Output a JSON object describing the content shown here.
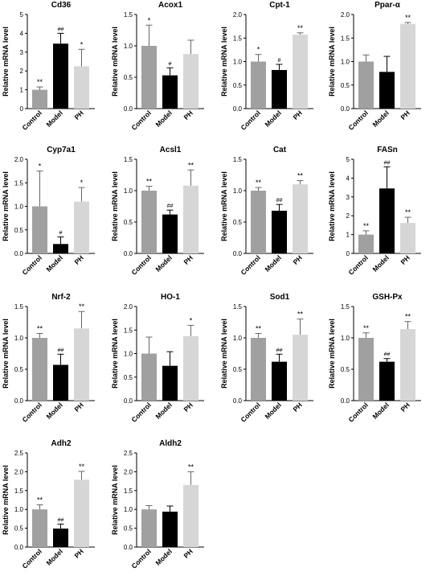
{
  "colors": {
    "control": "#a0a0a0",
    "model": "#000000",
    "ph": "#d6d6d6",
    "axis": "#000000"
  },
  "chart_data": [
    {
      "type": "bar",
      "title": "Cd36",
      "ylabel": "Relative mRNA level",
      "categories": [
        "Control",
        "Model",
        "PH"
      ],
      "ylim": [
        0,
        5
      ],
      "ticks": [
        "0",
        "1",
        "2",
        "3",
        "4",
        "5"
      ],
      "values": [
        1.0,
        3.45,
        2.25
      ],
      "errors": [
        0.15,
        0.55,
        0.9
      ],
      "labels": [
        "**",
        "##",
        "*"
      ]
    },
    {
      "type": "bar",
      "title": "Acox1",
      "ylabel": "Relative mRNA level",
      "categories": [
        "Control",
        "Model",
        "PH"
      ],
      "ylim": [
        0,
        1.5
      ],
      "ticks": [
        "0.0",
        "0.5",
        "1.0",
        "1.5"
      ],
      "values": [
        1.0,
        0.53,
        0.87
      ],
      "errors": [
        0.33,
        0.12,
        0.22
      ],
      "labels": [
        "*",
        "#",
        ""
      ]
    },
    {
      "type": "bar",
      "title": "Cpt-1",
      "ylabel": "Relative mRNA level",
      "categories": [
        "Control",
        "Model",
        "PH"
      ],
      "ylim": [
        0,
        2.0
      ],
      "ticks": [
        "0.0",
        "0.5",
        "1.0",
        "1.5",
        "2.0"
      ],
      "values": [
        1.0,
        0.82,
        1.57
      ],
      "errors": [
        0.15,
        0.12,
        0.04
      ],
      "labels": [
        "*",
        "#",
        "**"
      ]
    },
    {
      "type": "bar",
      "title": "Ppar-α",
      "ylabel": "Relative mRNA level",
      "categories": [
        "Control",
        "Model",
        "PH"
      ],
      "ylim": [
        0,
        2.0
      ],
      "ticks": [
        "0.0",
        "0.5",
        "1.0",
        "1.5",
        "2.0"
      ],
      "values": [
        1.0,
        0.78,
        1.8
      ],
      "errors": [
        0.14,
        0.33,
        0.03
      ],
      "labels": [
        "",
        "",
        "**"
      ]
    },
    {
      "type": "bar",
      "title": "Cyp7a1",
      "ylabel": "Relative mRNA level",
      "categories": [
        "Control",
        "Model",
        "PH"
      ],
      "ylim": [
        0,
        2.0
      ],
      "ticks": [
        "0.0",
        "0.5",
        "1.0",
        "1.5",
        "2.0"
      ],
      "values": [
        1.0,
        0.2,
        1.1
      ],
      "errors": [
        0.75,
        0.15,
        0.3
      ],
      "labels": [
        "*",
        "#",
        "*"
      ]
    },
    {
      "type": "bar",
      "title": "Acsl1",
      "ylabel": "Relative mRNA level",
      "categories": [
        "Control",
        "Model",
        "PH"
      ],
      "ylim": [
        0,
        1.5
      ],
      "ticks": [
        "0.0",
        "0.5",
        "1.0",
        "1.5"
      ],
      "values": [
        1.0,
        0.62,
        1.08
      ],
      "errors": [
        0.07,
        0.07,
        0.25
      ],
      "labels": [
        "**",
        "##",
        "**"
      ]
    },
    {
      "type": "bar",
      "title": "Cat",
      "ylabel": "Relative mRNA level",
      "categories": [
        "Control",
        "Model",
        "PH"
      ],
      "ylim": [
        0,
        1.5
      ],
      "ticks": [
        "0.0",
        "0.5",
        "1.0",
        "1.5"
      ],
      "values": [
        1.0,
        0.68,
        1.1
      ],
      "errors": [
        0.05,
        0.1,
        0.06
      ],
      "labels": [
        "**",
        "##",
        "**"
      ]
    },
    {
      "type": "bar",
      "title": "FASn",
      "ylabel": "Relative mRNA level",
      "categories": [
        "Control",
        "Model",
        "PH"
      ],
      "ylim": [
        0,
        5
      ],
      "ticks": [
        "0",
        "1",
        "2",
        "3",
        "4",
        "5"
      ],
      "values": [
        1.0,
        3.45,
        1.62
      ],
      "errors": [
        0.2,
        1.15,
        0.3
      ],
      "labels": [
        "**",
        "##",
        "**"
      ]
    },
    {
      "type": "bar",
      "title": "Nrf-2",
      "ylabel": "Relative mRNA level",
      "categories": [
        "Control",
        "Model",
        "PH"
      ],
      "ylim": [
        0,
        1.5
      ],
      "ticks": [
        "0.0",
        "0.5",
        "1.0",
        "1.5"
      ],
      "values": [
        1.0,
        0.57,
        1.15
      ],
      "errors": [
        0.07,
        0.17,
        0.27
      ],
      "labels": [
        "**",
        "##",
        "**"
      ]
    },
    {
      "type": "bar",
      "title": "HO-1",
      "ylabel": "Relative mRNA level",
      "categories": [
        "Control",
        "Model",
        "PH"
      ],
      "ylim": [
        0,
        2.0
      ],
      "ticks": [
        "0.0",
        "0.5",
        "1.0",
        "1.5",
        "2.0"
      ],
      "values": [
        1.0,
        0.74,
        1.37
      ],
      "errors": [
        0.35,
        0.3,
        0.23
      ],
      "labels": [
        "",
        "",
        "*"
      ]
    },
    {
      "type": "bar",
      "title": "Sod1",
      "ylabel": "Relative mRNA level",
      "categories": [
        "Control",
        "Model",
        "PH"
      ],
      "ylim": [
        0,
        1.5
      ],
      "ticks": [
        "0.0",
        "0.5",
        "1.0",
        "1.5"
      ],
      "values": [
        1.0,
        0.62,
        1.05
      ],
      "errors": [
        0.07,
        0.12,
        0.25
      ],
      "labels": [
        "**",
        "##",
        "**"
      ]
    },
    {
      "type": "bar",
      "title": "GSH-Px",
      "ylabel": "Relative mRNA level",
      "categories": [
        "Control",
        "Model",
        "PH"
      ],
      "ylim": [
        0,
        1.5
      ],
      "ticks": [
        "0.0",
        "0.5",
        "1.0",
        "1.5"
      ],
      "values": [
        1.0,
        0.62,
        1.14
      ],
      "errors": [
        0.08,
        0.05,
        0.12
      ],
      "labels": [
        "**",
        "##",
        "**"
      ]
    },
    {
      "type": "bar",
      "title": "Adh2",
      "ylabel": "Relative mRNA level",
      "categories": [
        "Control",
        "Model",
        "PH"
      ],
      "ylim": [
        0,
        2.5
      ],
      "ticks": [
        "0.0",
        "0.5",
        "1.0",
        "1.5",
        "2.0",
        "2.5"
      ],
      "values": [
        1.0,
        0.49,
        1.79
      ],
      "errors": [
        0.12,
        0.12,
        0.22
      ],
      "labels": [
        "**",
        "##",
        "**"
      ]
    },
    {
      "type": "bar",
      "title": "Aldh2",
      "ylabel": "Relative mRNA level",
      "categories": [
        "Control",
        "Model",
        "PH"
      ],
      "ylim": [
        0,
        2.5
      ],
      "ticks": [
        "0.0",
        "0.5",
        "1.0",
        "1.5",
        "2.0",
        "2.5"
      ],
      "values": [
        1.0,
        0.94,
        1.65
      ],
      "errors": [
        0.1,
        0.15,
        0.35
      ],
      "labels": [
        "",
        "",
        "**"
      ]
    }
  ]
}
